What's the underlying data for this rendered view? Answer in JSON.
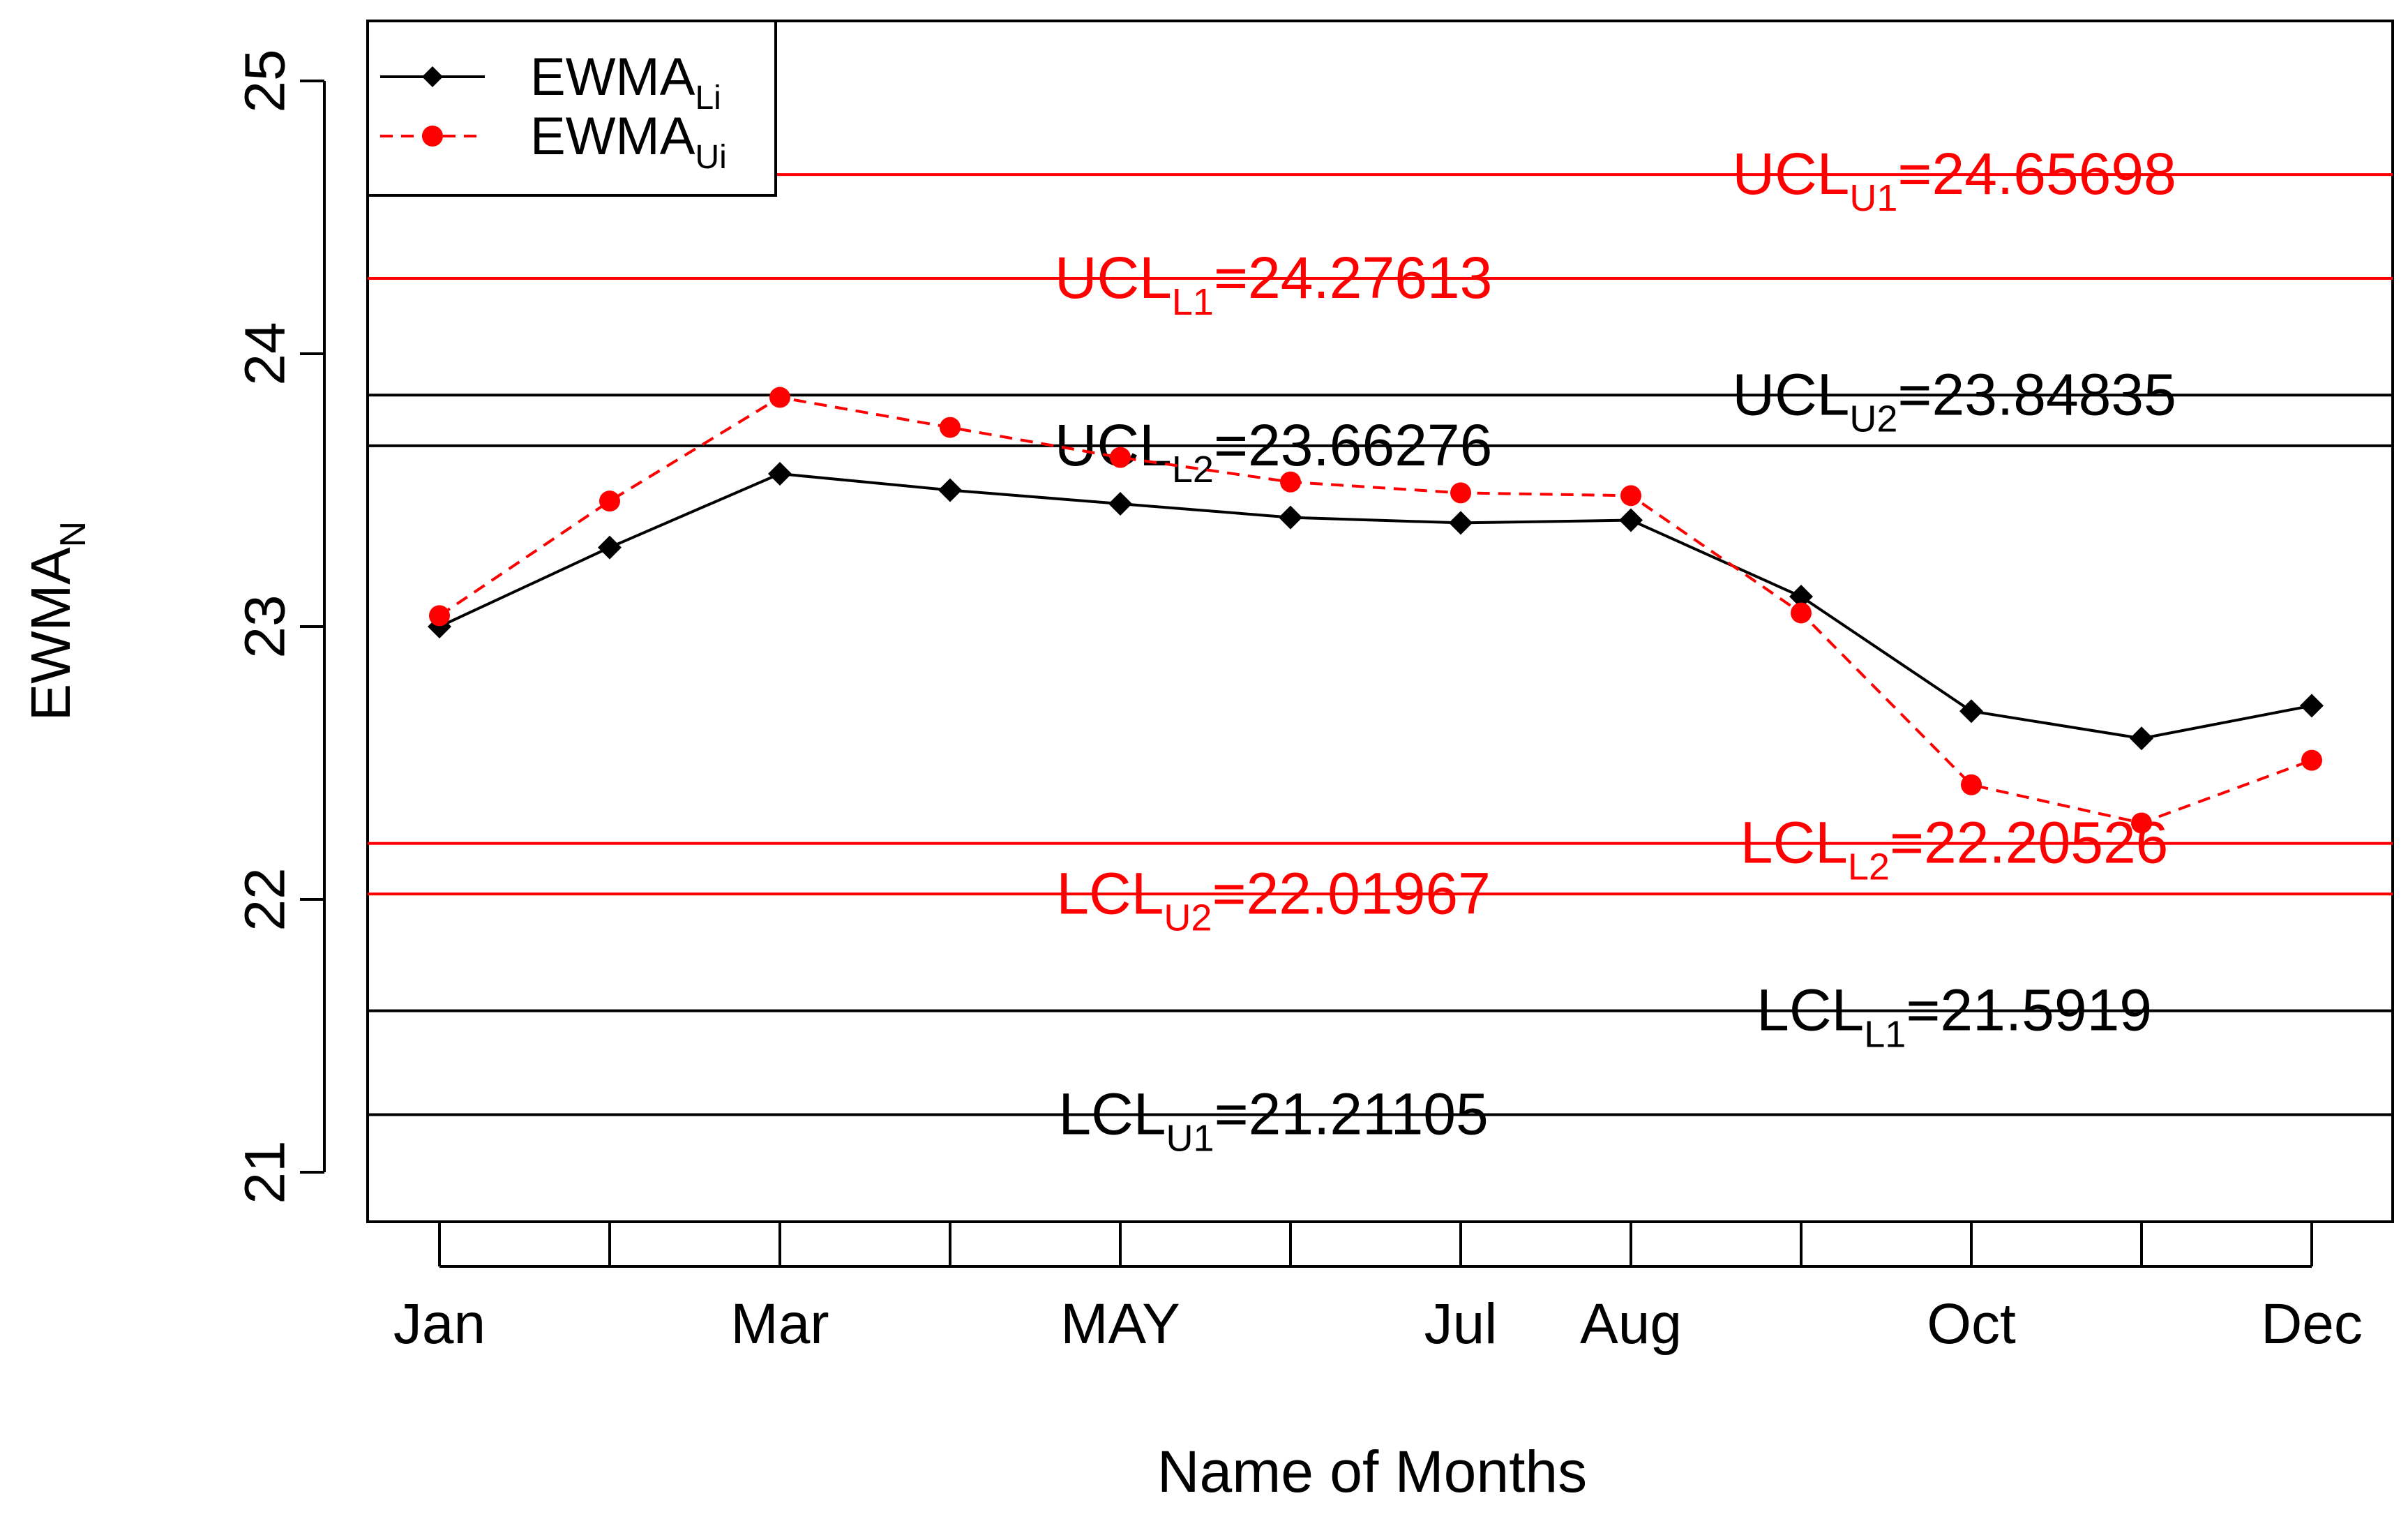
{
  "chart_data": {
    "type": "line",
    "xlabel": "Name of Months",
    "ylabel": {
      "base": "EWMA",
      "sub": "N"
    },
    "ylim": [
      21,
      25
    ],
    "yticks": [
      "21",
      "22",
      "23",
      "24",
      "25"
    ],
    "x": [
      1,
      2,
      3,
      4,
      5,
      6,
      7,
      8,
      9,
      10,
      11,
      12
    ],
    "xticks": [
      {
        "pos": 1,
        "label": "Jan"
      },
      {
        "pos": 3,
        "label": "Mar"
      },
      {
        "pos": 5,
        "label": "MAY"
      },
      {
        "pos": 7,
        "label": "Jul"
      },
      {
        "pos": 8,
        "label": "Aug"
      },
      {
        "pos": 10,
        "label": "Oct"
      },
      {
        "pos": 12,
        "label": "Dec"
      }
    ],
    "series": [
      {
        "name": "EWMA",
        "sub": "Li",
        "color": "#000000",
        "style": "solid",
        "marker": "diamond",
        "values": [
          23.0,
          23.29,
          23.56,
          23.5,
          23.45,
          23.4,
          23.38,
          23.39,
          23.11,
          22.69,
          22.59,
          22.71
        ]
      },
      {
        "name": "EWMA",
        "sub": "Ui",
        "color": "#ff0000",
        "style": "dashed",
        "marker": "circle",
        "values": [
          23.04,
          23.46,
          23.84,
          23.73,
          23.62,
          23.53,
          23.49,
          23.48,
          23.05,
          22.42,
          22.28,
          22.51
        ]
      }
    ],
    "control_limits": [
      {
        "base": "UCL",
        "sub": "U1",
        "eq": "=24.65698",
        "value": 24.65698,
        "color": "#ff0000",
        "label_at": 9.9
      },
      {
        "base": "UCL",
        "sub": "L1",
        "eq": "=24.27613",
        "value": 24.27613,
        "color": "#ff0000",
        "label_at": 5.9
      },
      {
        "base": "UCL",
        "sub": "U2",
        "eq": "=23.84835",
        "value": 23.84835,
        "color": "#000000",
        "label_at": 9.9
      },
      {
        "base": "UCL",
        "sub": "L2",
        "eq": "=23.66276",
        "value": 23.66276,
        "color": "#000000",
        "label_at": 5.9
      },
      {
        "base": "LCL",
        "sub": "L2",
        "eq": "=22.20526",
        "value": 22.20526,
        "color": "#ff0000",
        "label_at": 9.9
      },
      {
        "base": "LCL",
        "sub": "U2",
        "eq": "=22.01967",
        "value": 22.01967,
        "color": "#ff0000",
        "label_at": 5.9
      },
      {
        "base": "LCL",
        "sub": "L1",
        "eq": "=21.5919",
        "value": 21.5919,
        "color": "#000000",
        "label_at": 9.9
      },
      {
        "base": "LCL",
        "sub": "U1",
        "eq": "=21.21105",
        "value": 21.21105,
        "color": "#000000",
        "label_at": 5.9
      }
    ],
    "legend": {
      "position": "top-left",
      "entries": [
        {
          "base": "EWMA",
          "sub": "Li",
          "color": "#000000",
          "style": "solid"
        },
        {
          "base": "EWMA",
          "sub": "Ui",
          "color": "#ff0000",
          "style": "dashed"
        }
      ]
    }
  }
}
